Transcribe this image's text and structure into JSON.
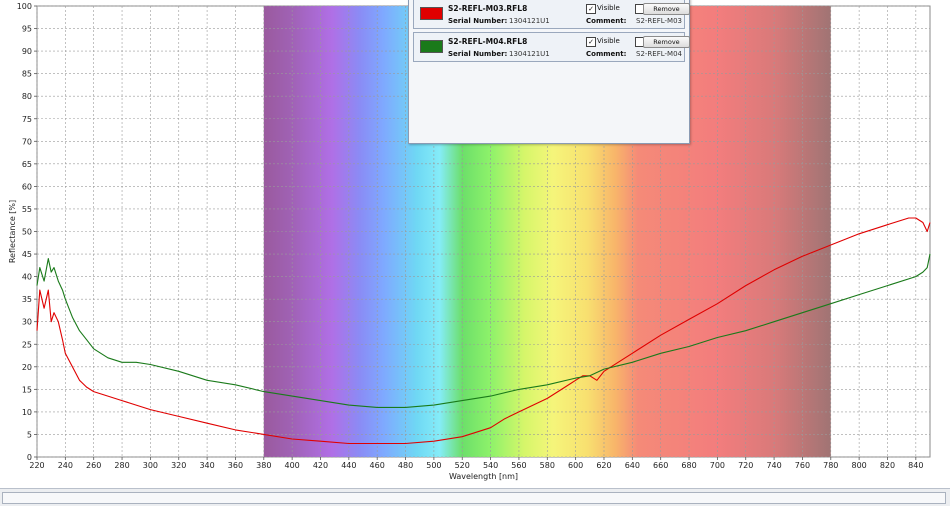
{
  "chart_data": {
    "type": "line",
    "xlabel": "Wavelength [nm]",
    "ylabel": "Reflectance [%]",
    "xlim": [
      220,
      850
    ],
    "ylim": [
      0,
      100
    ],
    "x_ticks": [
      220,
      240,
      260,
      280,
      300,
      320,
      340,
      360,
      380,
      400,
      420,
      440,
      460,
      480,
      500,
      520,
      540,
      560,
      580,
      600,
      620,
      640,
      660,
      680,
      700,
      720,
      740,
      760,
      780,
      800,
      820,
      840
    ],
    "y_ticks": [
      0,
      5,
      10,
      15,
      20,
      25,
      30,
      35,
      40,
      45,
      50,
      55,
      60,
      65,
      70,
      75,
      80,
      85,
      90,
      95,
      100
    ],
    "grid": true,
    "visible_band_nm": [
      380,
      780
    ],
    "series": [
      {
        "name": "S2-REFL-M03.RFL8",
        "color": "#e00000",
        "x": [
          220,
          222,
          225,
          228,
          230,
          232,
          235,
          238,
          240,
          245,
          250,
          255,
          260,
          265,
          270,
          280,
          290,
          300,
          320,
          340,
          360,
          380,
          400,
          420,
          440,
          460,
          480,
          500,
          520,
          540,
          550,
          560,
          570,
          580,
          590,
          600,
          605,
          610,
          615,
          620,
          640,
          660,
          680,
          700,
          720,
          740,
          760,
          780,
          800,
          820,
          835,
          840,
          845,
          848,
          850
        ],
        "y": [
          28,
          37,
          33,
          37,
          30,
          32,
          30,
          26,
          23,
          20,
          17,
          15.5,
          14.5,
          14,
          13.5,
          12.5,
          11.5,
          10.5,
          9,
          7.5,
          6,
          5,
          4,
          3.5,
          3,
          3,
          3,
          3.5,
          4.5,
          6.5,
          8.5,
          10,
          11.5,
          13,
          15,
          17,
          18,
          18,
          17,
          19,
          23,
          27,
          30.5,
          34,
          38,
          41.5,
          44.5,
          47,
          49.5,
          51.5,
          53,
          53,
          52,
          50,
          52
        ]
      },
      {
        "name": "S2-REFL-M04.RFL8",
        "color": "#1a7a1a",
        "x": [
          220,
          222,
          225,
          228,
          230,
          232,
          235,
          238,
          240,
          245,
          250,
          255,
          260,
          270,
          280,
          290,
          300,
          320,
          340,
          360,
          380,
          400,
          420,
          440,
          460,
          480,
          500,
          520,
          540,
          560,
          580,
          600,
          610,
          620,
          640,
          660,
          680,
          700,
          720,
          740,
          760,
          780,
          800,
          820,
          840,
          845,
          848,
          850
        ],
        "y": [
          38,
          42,
          39,
          44,
          41,
          42,
          39,
          37,
          35,
          31,
          28,
          26,
          24,
          22,
          21,
          21,
          20.5,
          19,
          17,
          16,
          14.5,
          13.5,
          12.5,
          11.5,
          11,
          11,
          11.5,
          12.5,
          13.5,
          15,
          16,
          17.5,
          18,
          19.5,
          21,
          23,
          24.5,
          26.5,
          28,
          30,
          32,
          34,
          36,
          38,
          40,
          41,
          42,
          45
        ]
      }
    ]
  },
  "legend": {
    "items": [
      {
        "name": "S2-REFL-M03.RFL8",
        "color": "#e00000",
        "serial_label": "Serial Number:",
        "serial": "1304121U1",
        "visible_label": "Visible",
        "visible_check": "✓",
        "remove_label": "Remove",
        "comment_label": "Comment:",
        "comment": "S2-REFL-M03"
      },
      {
        "name": "S2-REFL-M04.RFL8",
        "color": "#1a7a1a",
        "serial_label": "Serial Number:",
        "serial": "1304121U1",
        "visible_label": "Visible",
        "visible_check": "✓",
        "remove_label": "Remove",
        "comment_label": "Comment:",
        "comment": "S2-REFL-M04"
      }
    ]
  }
}
